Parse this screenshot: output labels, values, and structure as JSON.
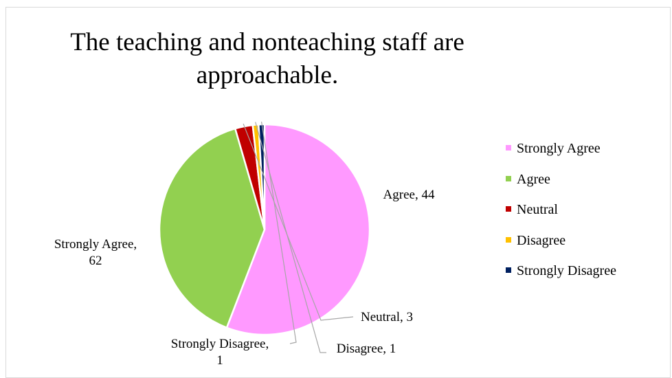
{
  "chart_data": {
    "type": "pie",
    "title": "The teaching and nonteaching staff are approachable.",
    "categories": [
      "Strongly Agree",
      "Agree",
      "Neutral",
      "Disagree",
      "Strongly Disagree"
    ],
    "values": [
      62,
      44,
      3,
      1,
      1
    ],
    "colors": [
      "#ff99ff",
      "#92d050",
      "#c00000",
      "#ffc000",
      "#002060"
    ],
    "data_labels": [
      [
        "Strongly Agree,",
        "62"
      ],
      [
        "Agree, 44"
      ],
      [
        "Neutral, 3"
      ],
      [
        "Disagree, 1"
      ],
      [
        "Strongly Disagree,",
        "1"
      ]
    ],
    "legend": {
      "position": "right",
      "entries": [
        "Strongly Agree",
        "Agree",
        "Neutral",
        "Disagree",
        "Strongly Disagree"
      ]
    },
    "start_angle": "12 o'clock",
    "direction": "clockwise",
    "slice_separator_color": "#ffffff"
  }
}
